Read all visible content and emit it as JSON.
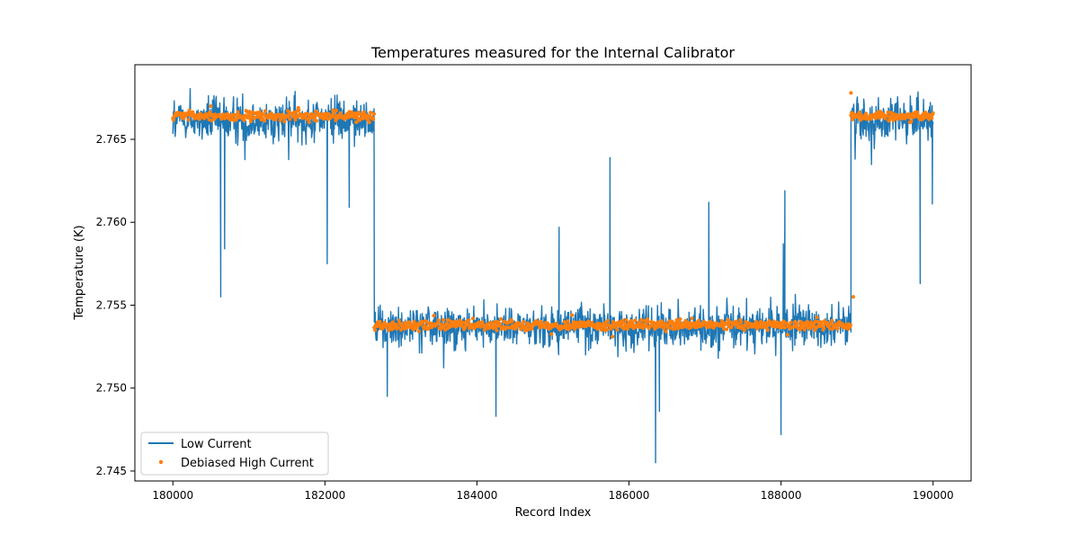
{
  "chart_data": {
    "type": "line",
    "title": "Temperatures measured for the Internal Calibrator",
    "xlabel": "Record Index",
    "ylabel": "Temperature (K)",
    "xlim": [
      179500,
      190500
    ],
    "ylim": [
      2.7444,
      2.7695
    ],
    "x_ticks": [
      180000,
      182000,
      184000,
      186000,
      188000,
      190000
    ],
    "x_tick_labels": [
      "180000",
      "182000",
      "184000",
      "186000",
      "188000",
      "190000"
    ],
    "y_ticks": [
      2.745,
      2.75,
      2.755,
      2.76,
      2.765
    ],
    "y_tick_labels": [
      "2.745",
      "2.750",
      "2.755",
      "2.760",
      "2.765"
    ],
    "grid": false,
    "legend_position": "lower-left",
    "segments": [
      {
        "x_start": 180000,
        "x_end": 182650,
        "low_mean": 2.7662,
        "high_mean": 2.7664
      },
      {
        "x_start": 182650,
        "x_end": 188920,
        "low_mean": 2.7537,
        "high_mean": 2.7538
      },
      {
        "x_start": 188920,
        "x_end": 190000,
        "low_mean": 2.7662,
        "high_mean": 2.7664
      }
    ],
    "spikes": [
      {
        "x": 180630,
        "y": 2.7555
      },
      {
        "x": 180680,
        "y": 2.7584
      },
      {
        "x": 182030,
        "y": 2.7575
      },
      {
        "x": 182320,
        "y": 2.7609
      },
      {
        "x": 182820,
        "y": 2.7495
      },
      {
        "x": 184250,
        "y": 2.7483
      },
      {
        "x": 185080,
        "y": 2.7597
      },
      {
        "x": 185750,
        "y": 2.7639
      },
      {
        "x": 186350,
        "y": 2.7455
      },
      {
        "x": 186400,
        "y": 2.7486
      },
      {
        "x": 187050,
        "y": 2.7612
      },
      {
        "x": 188000,
        "y": 2.7472
      },
      {
        "x": 188030,
        "y": 2.7587
      },
      {
        "x": 188050,
        "y": 2.7619
      },
      {
        "x": 189830,
        "y": 2.7563
      },
      {
        "x": 189990,
        "y": 2.7611
      }
    ],
    "series": [
      {
        "name": "Low Current",
        "style": "line",
        "color": "#1f77b4"
      },
      {
        "name": "Debiased High Current",
        "style": "scatter",
        "color": "#ff7f0e"
      }
    ]
  }
}
